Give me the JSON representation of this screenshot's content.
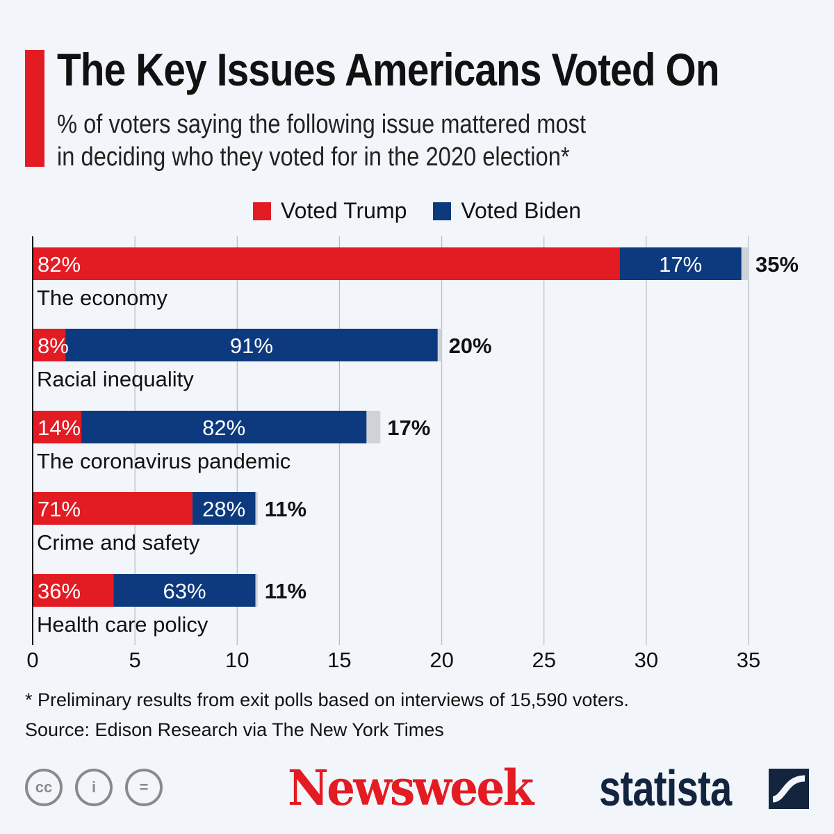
{
  "title": "The Key Issues Americans Voted On",
  "subtitle_line1": "% of voters saying the following issue mattered most",
  "subtitle_line2": "in deciding who they voted for in the 2020 election*",
  "colors": {
    "trump": "#e31b23",
    "biden": "#0d3a7e",
    "other": "#cfd3d8",
    "accent": "#e31b23",
    "grid": "#b8bcc2"
  },
  "chart_data": {
    "type": "bar",
    "orientation": "horizontal-stacked",
    "categories": [
      "The economy",
      "Racial inequality",
      "The coronavirus pandemic",
      "Crime and safety",
      "Health care policy"
    ],
    "totals": [
      35,
      20,
      17,
      11,
      11
    ],
    "total_labels": [
      "35%",
      "20%",
      "17%",
      "11%",
      "11%"
    ],
    "series": [
      {
        "name": "Voted Trump",
        "share_pct": [
          82,
          8,
          14,
          71,
          36
        ]
      },
      {
        "name": "Voted Biden",
        "share_pct": [
          17,
          91,
          82,
          28,
          63
        ]
      }
    ],
    "xlim": [
      0,
      35
    ],
    "xticks": [
      "0",
      "5",
      "10",
      "15",
      "20",
      "25",
      "30",
      "35"
    ],
    "grid": true,
    "legend": "top-center"
  },
  "footnote": "* Preliminary results from exit polls based on interviews of 15,590 voters.",
  "source": "Source: Edison Research via The New York Times",
  "logos": {
    "newsweek": "Newsweek",
    "statista": "statista",
    "license_icons": [
      "cc-icon",
      "by-icon",
      "nd-icon"
    ]
  }
}
